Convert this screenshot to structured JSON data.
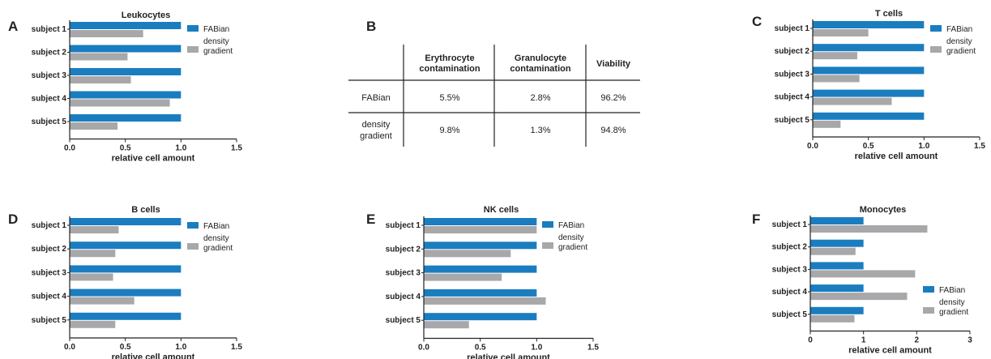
{
  "colors": {
    "fabian": "#1a7dc0",
    "density_gradient": "#a8a8ab",
    "axis": "#222222"
  },
  "chart_data": [
    {
      "panel": "A",
      "type": "bar",
      "orientation": "horizontal",
      "title": "Leukocytes",
      "xlabel": "relative cell amount",
      "ylabel": "",
      "categories": [
        "subject 1",
        "subject 2",
        "subject 3",
        "subject 4",
        "subject 5"
      ],
      "xlim": [
        0,
        1.5
      ],
      "xticks": [
        "0.0",
        "0.5",
        "1.0",
        "1.5"
      ],
      "legend": "right",
      "series": [
        {
          "name": "FABian",
          "values": [
            1.0,
            1.0,
            1.0,
            1.0,
            1.0
          ]
        },
        {
          "name": "density gradient",
          "values": [
            0.66,
            0.52,
            0.55,
            0.9,
            0.43
          ]
        }
      ]
    },
    {
      "panel": "C",
      "type": "bar",
      "orientation": "horizontal",
      "title": "T cells",
      "xlabel": "relative cell amount",
      "ylabel": "",
      "categories": [
        "subject 1",
        "subject 2",
        "subject 3",
        "subject 4",
        "subject 5"
      ],
      "xlim": [
        0,
        1.5
      ],
      "xticks": [
        "0.0",
        "0.5",
        "1.0",
        "1.5"
      ],
      "legend": "right",
      "series": [
        {
          "name": "FABian",
          "values": [
            1.0,
            1.0,
            1.0,
            1.0,
            1.0
          ]
        },
        {
          "name": "density gradient",
          "values": [
            0.5,
            0.4,
            0.42,
            0.71,
            0.25
          ]
        }
      ]
    },
    {
      "panel": "D",
      "type": "bar",
      "orientation": "horizontal",
      "title": "B cells",
      "xlabel": "relative cell amount",
      "ylabel": "",
      "categories": [
        "subject 1",
        "subject 2",
        "subject 3",
        "subject 4",
        "subject 5"
      ],
      "xlim": [
        0,
        1.5
      ],
      "xticks": [
        "0.0",
        "0.5",
        "1.0",
        "1.5"
      ],
      "legend": "right",
      "series": [
        {
          "name": "FABian",
          "values": [
            1.0,
            1.0,
            1.0,
            1.0,
            1.0
          ]
        },
        {
          "name": "density gradient",
          "values": [
            0.44,
            0.41,
            0.39,
            0.58,
            0.41
          ]
        }
      ]
    },
    {
      "panel": "E",
      "type": "bar",
      "orientation": "horizontal",
      "title": "NK cells",
      "xlabel": "relative cell amount",
      "ylabel": "",
      "categories": [
        "subject 1",
        "subject 2",
        "subject 3",
        "subject 4",
        "subject 5"
      ],
      "xlim": [
        0,
        1.5
      ],
      "xticks": [
        "0.0",
        "0.5",
        "1.0",
        "1.5"
      ],
      "legend": "right",
      "series": [
        {
          "name": "FABian",
          "values": [
            1.0,
            1.0,
            1.0,
            1.0,
            1.0
          ]
        },
        {
          "name": "density gradient",
          "values": [
            1.0,
            0.77,
            0.69,
            1.08,
            0.4
          ]
        }
      ]
    },
    {
      "panel": "F",
      "type": "bar",
      "orientation": "horizontal",
      "title": "Monocytes",
      "xlabel": "relative cell amount",
      "ylabel": "",
      "categories": [
        "subject 1",
        "subject 2",
        "subject 3",
        "subject 4",
        "subject 5"
      ],
      "xlim": [
        0,
        3
      ],
      "xticks": [
        "0",
        "1",
        "2",
        "3"
      ],
      "legend": "right",
      "series": [
        {
          "name": "FABian",
          "values": [
            1.0,
            1.0,
            1.0,
            1.0,
            1.0
          ]
        },
        {
          "name": "density gradient",
          "values": [
            2.2,
            0.85,
            1.97,
            1.82,
            0.83
          ]
        }
      ]
    },
    {
      "panel": "B",
      "type": "table",
      "columns": [
        "Erythrocyte contamination",
        "Granulocyte contamination",
        "Viability"
      ],
      "rows": [
        {
          "label": "FABian",
          "values": [
            "5.5%",
            "2.8%",
            "96.2%"
          ]
        },
        {
          "label": "density gradient",
          "values": [
            "9.8%",
            "1.3%",
            "94.8%"
          ]
        }
      ]
    }
  ]
}
